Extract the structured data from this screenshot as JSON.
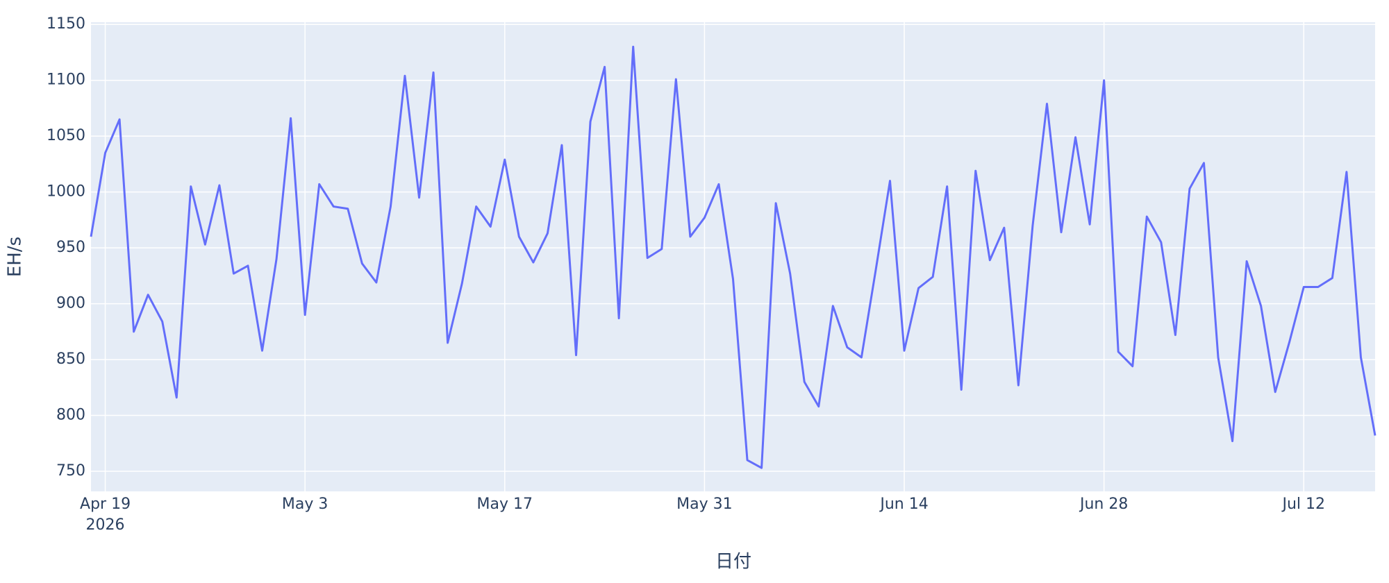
{
  "chart_data": {
    "type": "line",
    "x_label": "日付",
    "y_label": "EH/s",
    "x": [
      "2026-04-18",
      "2026-04-19",
      "2026-04-20",
      "2026-04-21",
      "2026-04-22",
      "2026-04-23",
      "2026-04-24",
      "2026-04-25",
      "2026-04-26",
      "2026-04-27",
      "2026-04-28",
      "2026-04-29",
      "2026-04-30",
      "2026-05-01",
      "2026-05-02",
      "2026-05-03",
      "2026-05-04",
      "2026-05-05",
      "2026-05-06",
      "2026-05-07",
      "2026-05-08",
      "2026-05-09",
      "2026-05-10",
      "2026-05-11",
      "2026-05-12",
      "2026-05-13",
      "2026-05-14",
      "2026-05-15",
      "2026-05-16",
      "2026-05-17",
      "2026-05-18",
      "2026-05-19",
      "2026-05-20",
      "2026-05-21",
      "2026-05-22",
      "2026-05-23",
      "2026-05-24",
      "2026-05-25",
      "2026-05-26",
      "2026-05-27",
      "2026-05-28",
      "2026-05-29",
      "2026-05-30",
      "2026-05-31",
      "2026-06-01",
      "2026-06-02",
      "2026-06-03",
      "2026-06-04",
      "2026-06-05",
      "2026-06-06",
      "2026-06-07",
      "2026-06-08",
      "2026-06-09",
      "2026-06-10",
      "2026-06-11",
      "2026-06-12",
      "2026-06-13",
      "2026-06-14",
      "2026-06-15",
      "2026-06-16",
      "2026-06-17",
      "2026-06-18",
      "2026-06-19",
      "2026-06-20",
      "2026-06-21",
      "2026-06-22",
      "2026-06-23",
      "2026-06-24",
      "2026-06-25",
      "2026-06-26",
      "2026-06-27",
      "2026-06-28",
      "2026-06-29",
      "2026-06-30",
      "2026-07-01",
      "2026-07-02",
      "2026-07-03",
      "2026-07-04",
      "2026-07-05",
      "2026-07-06",
      "2026-07-07",
      "2026-07-08",
      "2026-07-09",
      "2026-07-10",
      "2026-07-11",
      "2026-07-12",
      "2026-07-13",
      "2026-07-14",
      "2026-07-15",
      "2026-07-16",
      "2026-07-17"
    ],
    "series": [
      {
        "color": "#636efa",
        "values": [
          960,
          1035,
          1065,
          875,
          908,
          884,
          816,
          1005,
          953,
          1006,
          927,
          934,
          858,
          940,
          1066,
          890,
          1007,
          987,
          985,
          936,
          919,
          987,
          1104,
          995,
          1107,
          865,
          918,
          987,
          969,
          1029,
          960,
          937,
          963,
          1042,
          854,
          1063,
          1112,
          887,
          1130,
          941,
          949,
          1101,
          960,
          977,
          1007,
          922,
          760,
          753,
          990,
          927,
          830,
          808,
          898,
          861,
          852,
          930,
          1010,
          858,
          914,
          924,
          1005,
          823,
          1019,
          939,
          968,
          827,
          970,
          1079,
          964,
          1049,
          971,
          1100,
          857,
          844,
          978,
          955,
          872,
          1003,
          1026,
          852,
          777,
          938,
          898,
          821,
          866,
          915,
          915,
          923,
          1018,
          852,
          782
        ]
      }
    ],
    "xlim": [
      "2026-04-18",
      "2026-07-17"
    ],
    "xticks": [
      {
        "value": "2026-04-19",
        "label": "Apr 19",
        "sublabel": "2026"
      },
      {
        "value": "2026-05-03",
        "label": "May 3"
      },
      {
        "value": "2026-05-17",
        "label": "May 17"
      },
      {
        "value": "2026-05-31",
        "label": "May 31"
      },
      {
        "value": "2026-06-14",
        "label": "Jun 14"
      },
      {
        "value": "2026-06-28",
        "label": "Jun 28"
      },
      {
        "value": "2026-07-12",
        "label": "Jul 12"
      }
    ],
    "ylim": [
      732,
      1152
    ],
    "yticks": [
      750,
      800,
      850,
      900,
      950,
      1000,
      1050,
      1100,
      1150
    ],
    "grid": true
  }
}
